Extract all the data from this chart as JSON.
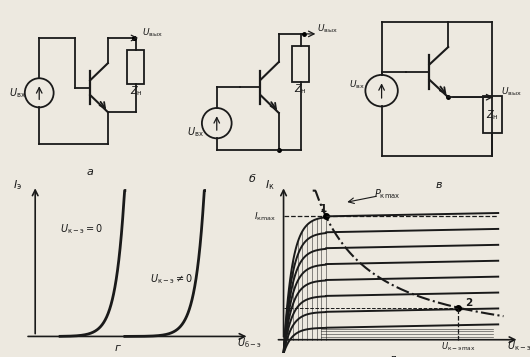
{
  "bg_color": "#ede9e0",
  "line_color": "#1a1a1a",
  "label_a": "a",
  "label_b": "б",
  "label_v": "в",
  "label_g": "г",
  "label_d": "д",
  "Uvx": "U_{вх}",
  "Uvyx": "U_{вых}",
  "Zn": "Z_{н}",
  "graph_g_y": "I_{э}",
  "graph_g_x": "U_{б-э}",
  "curve1_label": "U_{к-э}=0",
  "curve2_label": "U_{к-э}\\neq 0",
  "graph_d_y": "I_{к}",
  "graph_d_x": "U_{к-э}",
  "Pkmax": "P_{кmax}",
  "IKmax": "I_{кmax}",
  "UKEmax": "U_{к-эmax}",
  "lbl1": "1",
  "lbl2": "2"
}
